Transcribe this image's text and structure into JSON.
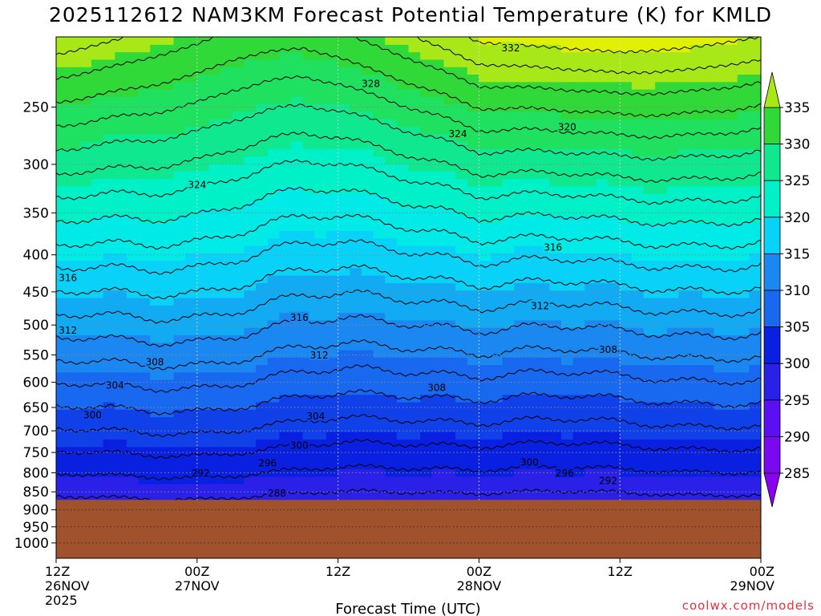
{
  "title": "2025112612 NAM3KM Forecast Potential Temperature (K) for KMLD",
  "watermark": "coolwx.com/models",
  "colors": {
    "terrain": "#a0522d",
    "contour": "#000000",
    "grid": "#888888",
    "fill_levels": [
      "#8a00f0",
      "#5a10f0",
      "#2a20e8",
      "#0a20e0",
      "#1040e8",
      "#1868f0",
      "#1a88f0",
      "#12aaf2",
      "#08d2f8",
      "#00eae8",
      "#00f0c8",
      "#10e890",
      "#20e060",
      "#30d838",
      "#a8e818",
      "#e0f000"
    ]
  },
  "chart_data": {
    "type": "heatmap",
    "title": "2025112612 NAM3KM Forecast Potential Temperature (K) for KMLD",
    "xlabel": "Forecast Time (UTC)",
    "ylabel": "",
    "units": "K",
    "x_ticks": [
      {
        "hour": 0,
        "label1": "12Z",
        "label2": "26NOV",
        "label3": "2025"
      },
      {
        "hour": 12,
        "label1": "00Z",
        "label2": "27NOV",
        "label3": ""
      },
      {
        "hour": 24,
        "label1": "12Z",
        "label2": "",
        "label3": ""
      },
      {
        "hour": 36,
        "label1": "00Z",
        "label2": "28NOV",
        "label3": ""
      },
      {
        "hour": 48,
        "label1": "12Z",
        "label2": "",
        "label3": ""
      },
      {
        "hour": 60,
        "label1": "00Z",
        "label2": "29NOV",
        "label3": ""
      }
    ],
    "x_range_hours": [
      0,
      60
    ],
    "y_scale": "log pressure (hPa), inverted",
    "y_range_hpa": [
      1050,
      200
    ],
    "y_ticks": [
      250,
      300,
      350,
      400,
      450,
      500,
      550,
      600,
      650,
      700,
      750,
      800,
      850,
      900,
      950,
      1000
    ],
    "surface_pressure_hpa": 872,
    "grid": true,
    "colorbar": {
      "labels": [
        335,
        330,
        325,
        320,
        315,
        310,
        305,
        300,
        295,
        290,
        285
      ],
      "placement": "right",
      "extend": "both"
    },
    "contour_interval_k": 2,
    "contour_labels": [
      {
        "value": "332",
        "hour": 38.7,
        "hpa": 207
      },
      {
        "value": "328",
        "hour": 26.8,
        "hpa": 232
      },
      {
        "value": "324",
        "hour": 34.2,
        "hpa": 272
      },
      {
        "value": "320",
        "hour": 43.5,
        "hpa": 266
      },
      {
        "value": "324",
        "hour": 12.0,
        "hpa": 320
      },
      {
        "value": "316",
        "hour": 42.3,
        "hpa": 390
      },
      {
        "value": "316",
        "hour": 1.0,
        "hpa": 430
      },
      {
        "value": "312",
        "hour": 41.2,
        "hpa": 470
      },
      {
        "value": "316",
        "hour": 20.7,
        "hpa": 488
      },
      {
        "value": "312",
        "hour": 1.0,
        "hpa": 508
      },
      {
        "value": "308",
        "hour": 47.0,
        "hpa": 540
      },
      {
        "value": "312",
        "hour": 22.4,
        "hpa": 550
      },
      {
        "value": "308",
        "hour": 8.4,
        "hpa": 562
      },
      {
        "value": "308",
        "hour": 32.4,
        "hpa": 610
      },
      {
        "value": "304",
        "hour": 5.0,
        "hpa": 605
      },
      {
        "value": "304",
        "hour": 22.1,
        "hpa": 668
      },
      {
        "value": "300",
        "hour": 3.1,
        "hpa": 665
      },
      {
        "value": "300",
        "hour": 20.7,
        "hpa": 733
      },
      {
        "value": "300",
        "hour": 40.3,
        "hpa": 773
      },
      {
        "value": "296",
        "hour": 18.0,
        "hpa": 775
      },
      {
        "value": "296",
        "hour": 43.3,
        "hpa": 800
      },
      {
        "value": "292",
        "hour": 12.3,
        "hpa": 800
      },
      {
        "value": "292",
        "hour": 47.0,
        "hpa": 820
      },
      {
        "value": "288",
        "hour": 18.8,
        "hpa": 853
      }
    ]
  }
}
